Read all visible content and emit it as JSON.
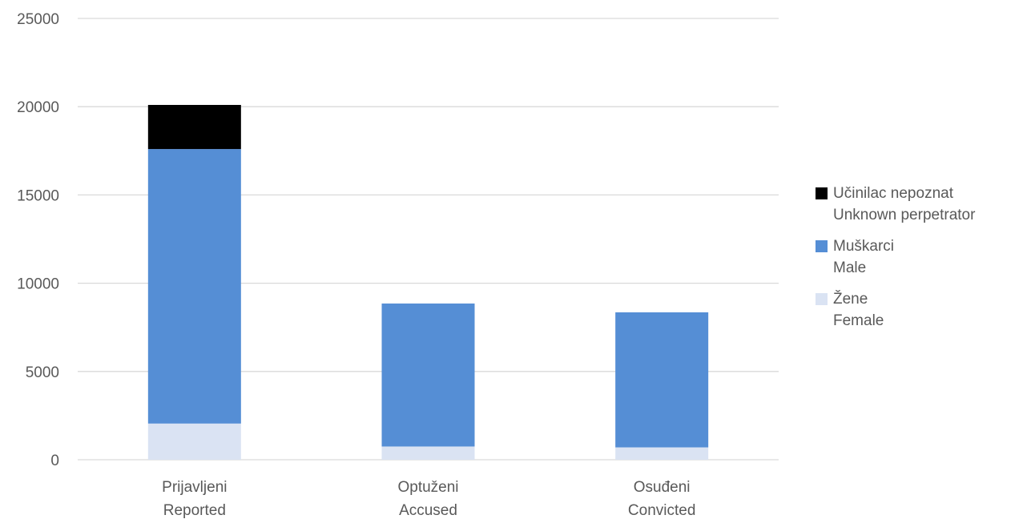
{
  "chart_data": {
    "type": "bar",
    "stacked": true,
    "categories": [
      [
        "Prijavljeni",
        "Reported"
      ],
      [
        "Optuženi",
        "Accused"
      ],
      [
        "Osuđeni",
        "Convicted"
      ]
    ],
    "series": [
      {
        "name": [
          "Žene",
          "Female"
        ],
        "color": "#dae3f3",
        "values": [
          2050,
          750,
          700
        ]
      },
      {
        "name": [
          "Muškarci",
          "Male"
        ],
        "color": "#558ed5",
        "values": [
          15550,
          8100,
          7650
        ]
      },
      {
        "name": [
          "Učinilac nepoznat",
          "Unknown perpetrator"
        ],
        "color": "#000000",
        "values": [
          2500,
          0,
          0
        ]
      }
    ],
    "yticks": [
      "0",
      "5000",
      "10000",
      "15000",
      "20000",
      "25000"
    ],
    "ylim": [
      0,
      25000
    ],
    "grid": true,
    "legend_position": "right",
    "gridline_color": "#d9d9d9",
    "axis_color": "#d9d9d9"
  }
}
